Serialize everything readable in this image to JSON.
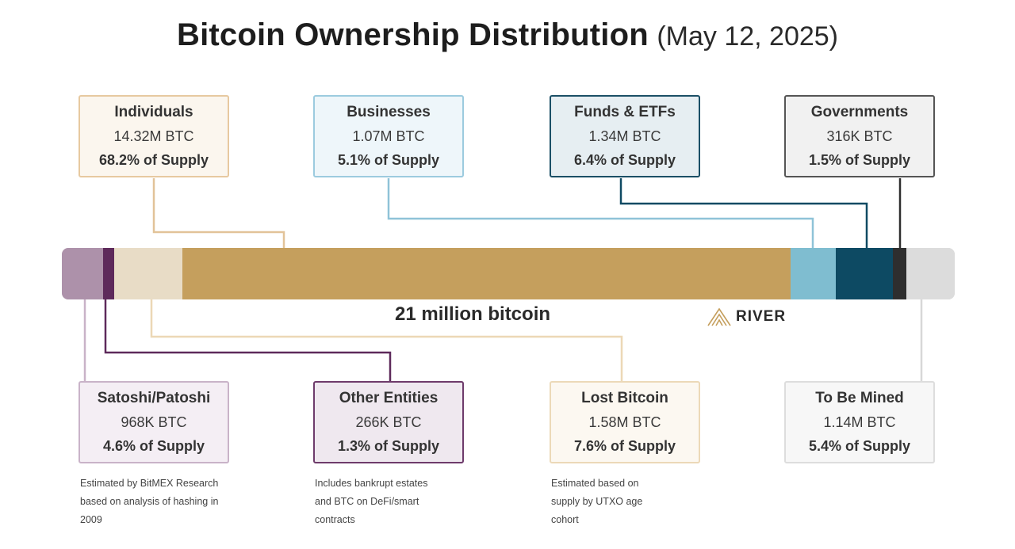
{
  "title": {
    "main": "Bitcoin Ownership Distribution",
    "date": "(May 12, 2025)"
  },
  "chart_data": {
    "type": "bar",
    "caption": "21 million bitcoin",
    "categories": [
      "Satoshi/Patoshi",
      "Other Entities",
      "Lost Bitcoin",
      "Individuals",
      "Businesses",
      "Funds & ETFs",
      "Governments",
      "To Be Mined"
    ],
    "values": [
      4.6,
      1.3,
      7.6,
      68.2,
      5.1,
      6.4,
      1.5,
      5.4
    ],
    "colors": [
      "#ad91aa",
      "#5e2a5b",
      "#e8dcc6",
      "#c59f5d",
      "#7fbdd0",
      "#0d4a63",
      "#2e2e2e",
      "#dcdcdc"
    ]
  },
  "categories": {
    "individuals": {
      "label": "Individuals",
      "btc": "14.32M BTC",
      "pct": "68.2% of Supply",
      "bg": "#fbf6ee",
      "border": "#e7c9a0"
    },
    "businesses": {
      "label": "Businesses",
      "btc": "1.07M BTC",
      "pct": "5.1% of Supply",
      "bg": "#eef6fa",
      "border": "#9ccbdf"
    },
    "funds": {
      "label": "Funds & ETFs",
      "btc": "1.34M BTC",
      "pct": "6.4% of Supply",
      "bg": "#e6eef2",
      "border": "#1b4f66"
    },
    "governments": {
      "label": "Governments",
      "btc": "316K BTC",
      "pct": "1.5% of Supply",
      "bg": "#f1f1f1",
      "border": "#555555"
    },
    "satoshi": {
      "label": "Satoshi/Patoshi",
      "btc": "968K BTC",
      "pct": "4.6% of Supply",
      "bg": "#f4eef4",
      "border": "#c9b3c8"
    },
    "other": {
      "label": "Other Entities",
      "btc": "266K BTC",
      "pct": "1.3% of Supply",
      "bg": "#efe8ef",
      "border": "#6e3b6b"
    },
    "lost": {
      "label": "Lost Bitcoin",
      "btc": "1.58M BTC",
      "pct": "7.6% of Supply",
      "bg": "#fcf8f1",
      "border": "#ecd9b8"
    },
    "to_be_mined": {
      "label": "To Be Mined",
      "btc": "1.14M BTC",
      "pct": "5.4% of Supply",
      "bg": "#f7f7f7",
      "border": "#dddddd"
    }
  },
  "notes": {
    "satoshi": "Estimated by BitMEX Research based on analysis of hashing in 2009",
    "other": "Includes bankrupt estates and BTC on DeFi/smart contracts",
    "lost": "Estimated based on supply by UTXO age cohort"
  },
  "brand": {
    "name": "RIVER",
    "color": "#c59f5d"
  },
  "icons": {
    "brand_logo": "river-chevron-logo"
  }
}
